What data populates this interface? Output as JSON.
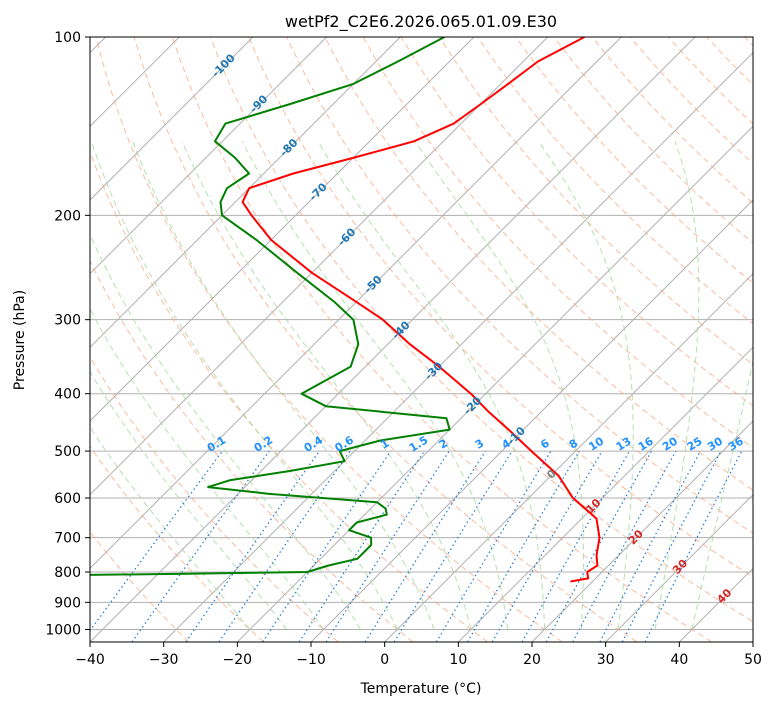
{
  "chart_data": {
    "type": "line",
    "title": "wetPf2_C2E6.2026.065.01.09.E30",
    "xlabel": "Temperature (°C)",
    "ylabel": "Pressure (hPa)",
    "xlim": [
      -40,
      50
    ],
    "ylim": [
      1050,
      100
    ],
    "y_scale": "log",
    "x_ticks": [
      "−40",
      "−30",
      "−20",
      "−10",
      "0",
      "10",
      "20",
      "30",
      "40",
      "50"
    ],
    "x_tick_values": [
      -40,
      -30,
      -20,
      -10,
      0,
      10,
      20,
      30,
      40,
      50
    ],
    "y_ticks": [
      "100",
      "200",
      "300",
      "400",
      "500",
      "600",
      "700",
      "800",
      "900",
      "1000"
    ],
    "y_tick_values": [
      100,
      200,
      300,
      400,
      500,
      600,
      700,
      800,
      900,
      1000
    ],
    "grid": true,
    "colors": {
      "temperature": "#ff0000",
      "dewpoint": "#008000",
      "isotherm": "#b0b0b0",
      "dry_adiabat": "#f4a582",
      "moist_adiabat": "#a6d6a0",
      "mixing_ratio": "#1e78d2",
      "label_blue": "#1f77b4",
      "label_mixing": "#1e90ff",
      "label_red": "#d62728",
      "label_gray": "#7f7f7f"
    },
    "isotherm_labels": [
      {
        "text": "-100",
        "t": -100,
        "p": 112
      },
      {
        "text": "-90",
        "t": -90,
        "p": 130
      },
      {
        "text": "-80",
        "t": -80,
        "p": 154
      },
      {
        "text": "-70",
        "t": -70,
        "p": 183
      },
      {
        "text": "-60",
        "t": -60,
        "p": 218
      },
      {
        "text": "-50",
        "t": -50,
        "p": 262
      },
      {
        "text": "-40",
        "t": -40,
        "p": 313
      },
      {
        "text": "-30",
        "t": -30,
        "p": 367
      },
      {
        "text": "-20",
        "t": -20,
        "p": 420
      },
      {
        "text": "-10",
        "t": -10,
        "p": 472
      },
      {
        "text": "0",
        "t": 0,
        "p": 548
      },
      {
        "text": "10",
        "t": 10,
        "p": 620
      },
      {
        "text": "20",
        "t": 20,
        "p": 700
      },
      {
        "text": "30",
        "t": 30,
        "p": 785
      },
      {
        "text": "40",
        "t": 40,
        "p": 880
      }
    ],
    "mixing_ratio_labels": [
      "0.1",
      "0.2",
      "0.4",
      "0.6",
      "1",
      "1.5",
      "2",
      "3",
      "4",
      "6",
      "8",
      "10",
      "13",
      "16",
      "20",
      "25",
      "30",
      "36"
    ],
    "mixing_ratio_values": [
      0.1,
      0.2,
      0.4,
      0.6,
      1,
      1.5,
      2,
      3,
      4,
      6,
      8,
      10,
      13,
      16,
      20,
      25,
      30,
      36
    ],
    "series": [
      {
        "key": "temperature",
        "pressure": [
          100,
          110,
          120,
          130,
          140,
          150,
          160,
          170,
          180,
          190,
          200,
          220,
          250,
          280,
          300,
          330,
          360,
          400,
          430,
          460,
          500,
          550,
          600,
          650,
          700,
          750,
          780,
          800,
          820,
          830
        ],
        "values": [
          -55,
          -58,
          -59,
          -60,
          -61,
          -64,
          -70,
          -76,
          -80,
          -79,
          -76,
          -70,
          -60,
          -50,
          -44,
          -37,
          -30,
          -22,
          -17,
          -12,
          -6,
          1,
          6,
          12,
          15,
          17,
          18.5,
          18,
          19,
          17
        ]
      },
      {
        "key": "dewpoint",
        "pressure": [
          100,
          110,
          120,
          130,
          140,
          150,
          160,
          170,
          180,
          190,
          200,
          220,
          250,
          280,
          300,
          330,
          360,
          400,
          420,
          440,
          460,
          480,
          500,
          520,
          540,
          560,
          575,
          590,
          610,
          625,
          640,
          660,
          680,
          700,
          720,
          740,
          760,
          780,
          800,
          805,
          812
        ],
        "values": [
          -74,
          -77,
          -80,
          -86,
          -92,
          -91,
          -86,
          -82,
          -83,
          -82,
          -80,
          -72,
          -62,
          -53,
          -48,
          -44,
          -42,
          -45,
          -40,
          -22,
          -20,
          -28,
          -32,
          -30,
          -36,
          -43,
          -45,
          -36,
          -20,
          -18,
          -17,
          -20,
          -20,
          -16,
          -15,
          -15,
          -15,
          -18,
          -20,
          -35,
          -60
        ]
      }
    ]
  }
}
